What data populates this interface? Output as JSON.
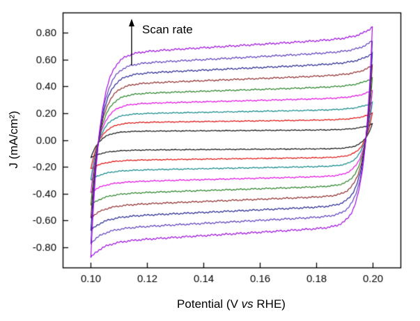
{
  "chart_data": {
    "type": "line",
    "chart_kind": "cyclic-voltammetry",
    "title": "",
    "xlabel": "Potential (V vs RHE)",
    "xlabel_parts": {
      "pre": "Potential (V ",
      "italic": "vs",
      "post": " RHE)"
    },
    "ylabel": "J (mA/cm²)",
    "annotation": "Scan rate",
    "xlim": [
      0.09,
      0.21
    ],
    "ylim": [
      -0.95,
      0.95
    ],
    "x_ticks": [
      0.1,
      0.12,
      0.14,
      0.16,
      0.18,
      0.2
    ],
    "x_tick_labels": [
      "0.10",
      "0.12",
      "0.14",
      "0.16",
      "0.18",
      "0.20"
    ],
    "y_ticks": [
      0.8,
      0.6,
      0.4,
      0.2,
      0.0,
      -0.2,
      -0.4,
      -0.6,
      -0.8
    ],
    "y_tick_labels": [
      "0.80",
      "0.60",
      "0.40",
      "0.20",
      "0.00",
      "-0.20",
      "-0.40",
      "-0.60",
      "-0.80"
    ],
    "potential_window_V": [
      0.1,
      0.2
    ],
    "series": [
      {
        "name": "cv-scan-1",
        "color": "#000000",
        "j_plateau_mA_cm2": 0.07
      },
      {
        "name": "cv-scan-2",
        "color": "#e00000",
        "j_plateau_mA_cm2": 0.14
      },
      {
        "name": "cv-scan-3",
        "color": "#008080",
        "j_plateau_mA_cm2": 0.21
      },
      {
        "name": "cv-scan-4",
        "color": "#e500e5",
        "j_plateau_mA_cm2": 0.29
      },
      {
        "name": "cv-scan-5",
        "color": "#1e7d1e",
        "j_plateau_mA_cm2": 0.37
      },
      {
        "name": "cv-scan-6",
        "color": "#8b2222",
        "j_plateau_mA_cm2": 0.45
      },
      {
        "name": "cv-scan-7",
        "color": "#1a1a8c",
        "j_plateau_mA_cm2": 0.53
      },
      {
        "name": "cv-scan-8",
        "color": "#5533bb",
        "j_plateau_mA_cm2": 0.61
      },
      {
        "name": "cv-scan-9",
        "color": "#9900dd",
        "j_plateau_mA_cm2": 0.7
      }
    ]
  }
}
